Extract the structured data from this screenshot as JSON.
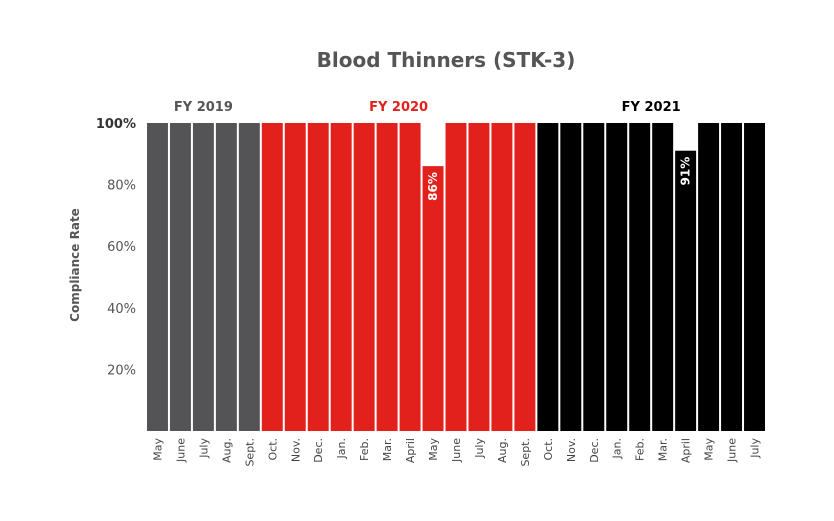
{
  "chart_data": {
    "type": "bar",
    "title": "Blood Thinners (STK-3)",
    "ylabel": "Compliance Rate",
    "xlabel": "",
    "ylim": [
      0,
      100
    ],
    "yticks": [
      "20%",
      "40%",
      "60%",
      "80%",
      "100%"
    ],
    "yticks_values": [
      20,
      40,
      60,
      80,
      100
    ],
    "grid": false,
    "legend": "none",
    "categories": [
      "May",
      "June",
      "July",
      "Aug.",
      "Sept.",
      "Oct.",
      "Nov.",
      "Dec.",
      "Jan.",
      "Feb.",
      "Mar.",
      "April",
      "May",
      "June",
      "July",
      "Aug.",
      "Sept.",
      "Oct.",
      "Nov.",
      "Dec.",
      "Jan.",
      "Feb.",
      "Mar.",
      "April",
      "May",
      "June",
      "July"
    ],
    "values": [
      100,
      100,
      100,
      100,
      100,
      100,
      100,
      100,
      100,
      100,
      100,
      100,
      86,
      100,
      100,
      100,
      100,
      100,
      100,
      100,
      100,
      100,
      100,
      91,
      100,
      100,
      100
    ],
    "data_labels": [
      {
        "index": 12,
        "text": "86%"
      },
      {
        "index": 23,
        "text": "91%"
      }
    ],
    "groups": [
      {
        "label": "FY 2019",
        "start": 0,
        "end": 4,
        "color": "#545456",
        "label_color": "#555557"
      },
      {
        "label": "FY 2020",
        "start": 5,
        "end": 16,
        "color": "#e2211c",
        "label_color": "#e2211c"
      },
      {
        "label": "FY 2021",
        "start": 17,
        "end": 26,
        "color": "#000000",
        "label_color": "#000000"
      }
    ]
  }
}
